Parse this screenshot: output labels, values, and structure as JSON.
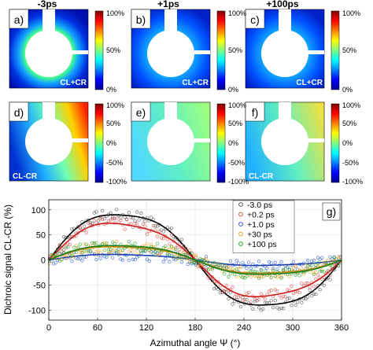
{
  "columns": [
    "-3ps",
    "+1ps",
    "+100ps"
  ],
  "panels": [
    {
      "label": "a)",
      "tag": "CL+CR"
    },
    {
      "label": "b)",
      "tag": "CL+CR"
    },
    {
      "label": "c)",
      "tag": "CL+CR"
    },
    {
      "label": "d)",
      "tag": "CL-CR"
    },
    {
      "label": "e)",
      "tag": ""
    },
    {
      "label": "f)",
      "tag": "CL-CR"
    }
  ],
  "colorbars": {
    "sum_ticks": [
      "100%",
      "50%",
      "0%"
    ],
    "diff_ticks": [
      "100%",
      "50%",
      "0%",
      "-50%",
      "-100%"
    ]
  },
  "chart_data": {
    "type": "scatter",
    "panel_label": "g)",
    "xlabel": "Azimuthal angle Ψ (°)",
    "ylabel": "Dichroic signal CL-CR (%)",
    "xlim": [
      0,
      360
    ],
    "ylim": [
      -120,
      120
    ],
    "xticks": [
      0,
      60,
      120,
      180,
      240,
      300,
      360
    ],
    "yticks": [
      -100,
      -50,
      0,
      50,
      100
    ],
    "grid": true,
    "legend_position": "top-right",
    "series": [
      {
        "name": "-3.0 ps",
        "color": "#555555",
        "fit_color": "#000000",
        "amplitude": 105,
        "peak_deg": 95
      },
      {
        "name": "+0.2 ps",
        "color": "#d9534f",
        "fit_color": "#cc1a1a",
        "amplitude": 82,
        "peak_deg": 105
      },
      {
        "name": "+1.0 ps",
        "color": "#2f5fd0",
        "fit_color": "#1a3fb0",
        "amplitude": 12,
        "peak_deg": 110
      },
      {
        "name": "+30 ps",
        "color": "#f0a020",
        "fit_color": "#d08810",
        "amplitude": 30,
        "peak_deg": 100
      },
      {
        "name": "+100 ps",
        "color": "#2ca02c",
        "fit_color": "#1a7f1a",
        "amplitude": 33,
        "peak_deg": 98
      }
    ]
  }
}
